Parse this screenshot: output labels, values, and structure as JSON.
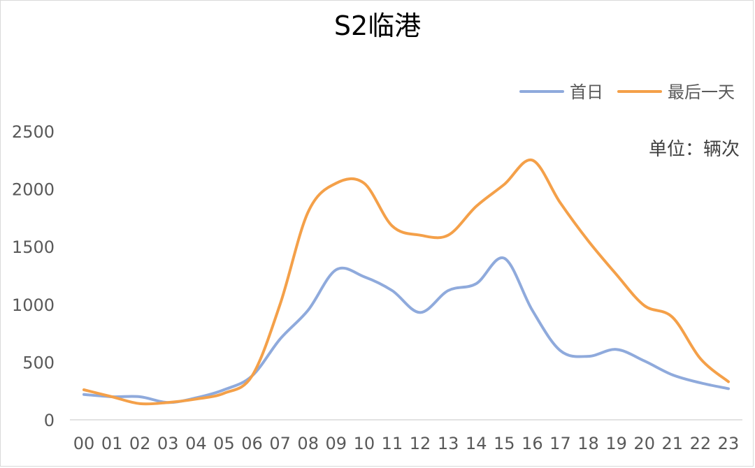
{
  "chart_data": {
    "type": "line",
    "title": "S2临港",
    "unit_note": "单位：辆次",
    "xlabel": "",
    "ylabel": "",
    "categories": [
      "00",
      "01",
      "02",
      "03",
      "04",
      "05",
      "06",
      "07",
      "08",
      "09",
      "10",
      "11",
      "12",
      "13",
      "14",
      "15",
      "16",
      "17",
      "18",
      "19",
      "20",
      "21",
      "22",
      "23"
    ],
    "yticks": [
      "0",
      "500",
      "1000",
      "1500",
      "2000",
      "2500"
    ],
    "ylim": [
      0,
      2500
    ],
    "grid": false,
    "legend_position": "top-right",
    "series": [
      {
        "name": "首日",
        "color": "#8FAADC",
        "values": [
          220,
          200,
          200,
          150,
          190,
          260,
          380,
          700,
          950,
          1300,
          1240,
          1120,
          930,
          1120,
          1180,
          1400,
          950,
          600,
          550,
          610,
          510,
          390,
          320,
          270
        ]
      },
      {
        "name": "最后一天",
        "color": "#F4A049",
        "values": [
          260,
          200,
          140,
          150,
          180,
          230,
          380,
          1000,
          1800,
          2050,
          2050,
          1680,
          1600,
          1600,
          1850,
          2040,
          2250,
          1880,
          1550,
          1260,
          990,
          890,
          530,
          330
        ]
      }
    ]
  }
}
